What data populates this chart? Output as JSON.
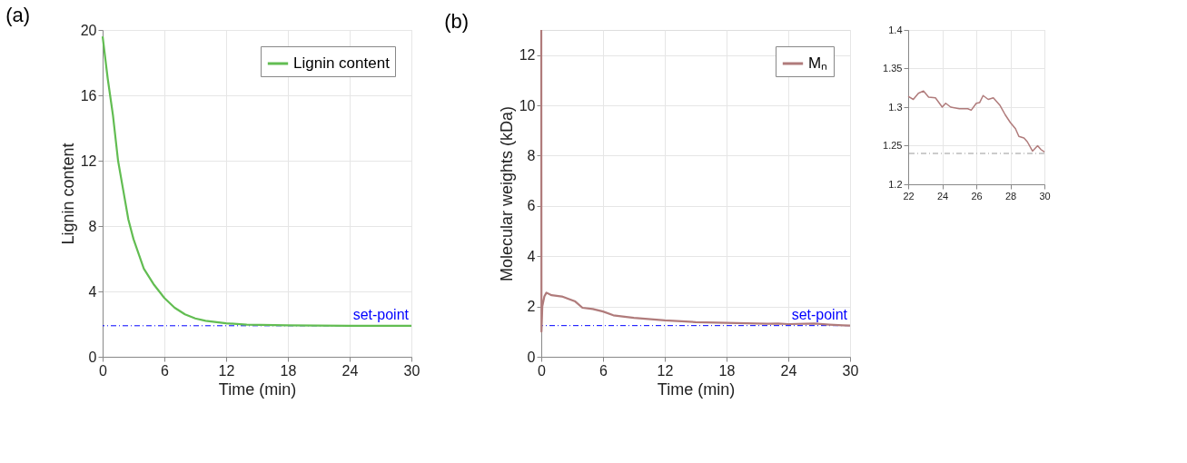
{
  "chart_data": [
    {
      "type": "line",
      "title": "(a)",
      "xlabel": "Time (min)",
      "ylabel": "Lignin content",
      "xlim": [
        0,
        30
      ],
      "xticks": [
        0,
        6,
        12,
        18,
        24,
        30
      ],
      "ylim": [
        0,
        20
      ],
      "yticks": [
        0,
        4,
        8,
        12,
        16,
        20
      ],
      "grid": true,
      "legend": "top right",
      "series": [
        {
          "name": "Lignin content",
          "color": "#62bd52",
          "x": [
            0,
            0.5,
            1,
            1.5,
            2,
            2.5,
            3,
            4,
            5,
            5.5,
            6,
            7,
            8,
            9,
            10,
            12,
            14,
            18,
            24,
            30
          ],
          "values": [
            19.6,
            17.0,
            14.8,
            12.0,
            10.2,
            8.4,
            7.2,
            5.4,
            4.4,
            4.0,
            3.6,
            3.0,
            2.6,
            2.35,
            2.2,
            2.05,
            1.97,
            1.92,
            1.9,
            1.9
          ]
        }
      ],
      "ref_lines": [
        {
          "axis": "y",
          "value": 1.9,
          "label": "set-point",
          "color": "#0000ff",
          "line_style": "dashdot"
        }
      ]
    },
    {
      "type": "line",
      "title": "(b)",
      "xlabel": "Time (min)",
      "ylabel": "Molecular weights (kDa)",
      "xlim": [
        0,
        30
      ],
      "xticks": [
        0,
        6,
        12,
        18,
        24,
        30
      ],
      "ylim": [
        0,
        13
      ],
      "yticks": [
        0,
        2,
        4,
        6,
        8,
        10,
        12
      ],
      "grid": true,
      "legend": "top right",
      "series": [
        {
          "name": "Mₙ",
          "color": "#b07b7b",
          "x": [
            0,
            0.02,
            0.1,
            0.3,
            0.5,
            1,
            2,
            3,
            3.3,
            4,
            5,
            6,
            7,
            9,
            12,
            15,
            18,
            22,
            23,
            24,
            26.5,
            28,
            29.3,
            30
          ],
          "values": [
            13,
            1.0,
            2.0,
            2.4,
            2.55,
            2.45,
            2.4,
            2.25,
            2.2,
            1.95,
            1.9,
            1.8,
            1.65,
            1.55,
            1.45,
            1.38,
            1.35,
            1.31,
            1.32,
            1.3,
            1.32,
            1.28,
            1.25,
            1.24
          ]
        }
      ],
      "ref_lines": [
        {
          "axis": "y",
          "value": 1.24,
          "label": "set-point",
          "color": "#0000ff",
          "line_style": "dashdot"
        }
      ]
    },
    {
      "type": "line",
      "xlim": [
        22,
        30
      ],
      "xticks": [
        22,
        24,
        26,
        28,
        30
      ],
      "ylim": [
        1.2,
        1.4
      ],
      "yticks": [
        1.2,
        1.25,
        1.3,
        1.35,
        1.4
      ],
      "grid": true,
      "series": [
        {
          "color": "#b07b7b",
          "x": [
            22,
            22.3,
            22.6,
            22.9,
            23.2,
            23.6,
            24,
            24.2,
            24.5,
            25,
            25.5,
            25.7,
            26,
            26.2,
            26.4,
            26.7,
            27,
            27.4,
            27.7,
            28,
            28.3,
            28.5,
            28.8,
            29,
            29.3,
            29.6,
            29.8,
            30
          ],
          "values": [
            1.314,
            1.31,
            1.318,
            1.321,
            1.313,
            1.312,
            1.3,
            1.305,
            1.3,
            1.298,
            1.298,
            1.296,
            1.305,
            1.306,
            1.315,
            1.31,
            1.312,
            1.302,
            1.29,
            1.28,
            1.272,
            1.262,
            1.26,
            1.255,
            1.243,
            1.25,
            1.245,
            1.242
          ]
        }
      ],
      "ref_lines": [
        {
          "axis": "y",
          "value": 1.24,
          "color": "#999999",
          "line_style": "dashdot"
        }
      ]
    }
  ]
}
